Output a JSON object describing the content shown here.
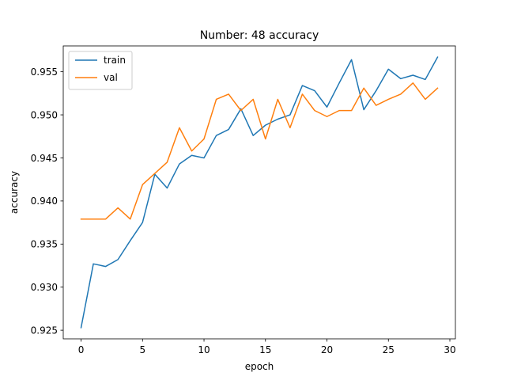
{
  "chart_data": {
    "type": "line",
    "title": "Number: 48 accuracy",
    "xlabel": "epoch",
    "ylabel": "accuracy",
    "x": [
      0,
      1,
      2,
      3,
      4,
      5,
      6,
      7,
      8,
      9,
      10,
      11,
      12,
      13,
      14,
      15,
      16,
      17,
      18,
      19,
      20,
      21,
      22,
      23,
      24,
      25,
      26,
      27,
      28,
      29
    ],
    "xlim": [
      -1.45,
      30.45
    ],
    "ylim": [
      0.924,
      0.958
    ],
    "xticks": [
      0,
      5,
      10,
      15,
      20,
      25,
      30
    ],
    "yticks": [
      0.925,
      0.93,
      0.935,
      0.94,
      0.945,
      0.95,
      0.955
    ],
    "xtick_labels": [
      "0",
      "5",
      "10",
      "15",
      "20",
      "25",
      "30"
    ],
    "ytick_labels": [
      "0.925",
      "0.930",
      "0.935",
      "0.940",
      "0.945",
      "0.950",
      "0.955"
    ],
    "grid": false,
    "legend_position": "top-left",
    "series": [
      {
        "name": "train",
        "color": "#1f77b4",
        "values": [
          0.9253,
          0.9327,
          0.9324,
          0.9332,
          0.9354,
          0.9375,
          0.9431,
          0.9415,
          0.9443,
          0.9453,
          0.945,
          0.9476,
          0.9483,
          0.9507,
          0.9476,
          0.9488,
          0.9495,
          0.95,
          0.9534,
          0.9528,
          0.9509,
          0.9537,
          0.9564,
          0.9506,
          0.9528,
          0.9553,
          0.9542,
          0.9546,
          0.9541,
          0.9567
        ]
      },
      {
        "name": "val",
        "color": "#ff7f0e",
        "values": [
          0.9379,
          0.9379,
          0.9379,
          0.9392,
          0.9379,
          0.9419,
          0.9432,
          0.9445,
          0.9485,
          0.9458,
          0.9472,
          0.9518,
          0.9524,
          0.9505,
          0.9518,
          0.9472,
          0.9518,
          0.9485,
          0.9524,
          0.9505,
          0.9498,
          0.9505,
          0.9505,
          0.9531,
          0.9511,
          0.9518,
          0.9524,
          0.9537,
          0.9518,
          0.9531
        ]
      }
    ]
  }
}
